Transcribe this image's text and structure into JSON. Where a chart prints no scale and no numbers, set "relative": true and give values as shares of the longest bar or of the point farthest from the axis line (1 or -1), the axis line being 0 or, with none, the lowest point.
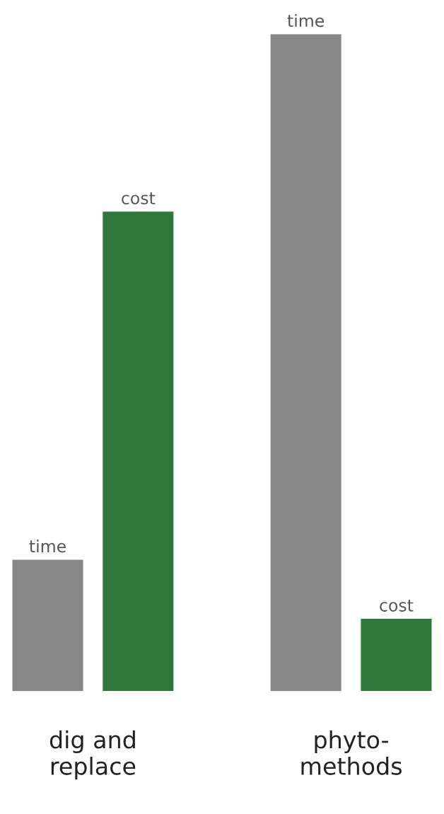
{
  "chart_data": {
    "type": "bar",
    "relative": true,
    "categories": [
      "dig and\nreplace",
      "phyto-\nmethods"
    ],
    "series": [
      {
        "name": "time",
        "color": "#878787",
        "values": [
          0.2,
          1
        ]
      },
      {
        "name": "cost",
        "color": "#2e773b",
        "values": [
          0.73,
          0.11
        ]
      }
    ]
  }
}
